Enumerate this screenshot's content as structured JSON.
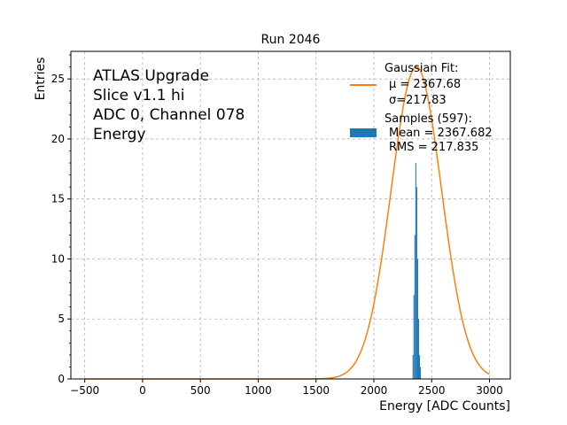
{
  "chart_data": {
    "type": "histogram",
    "title": "Run 2046",
    "xlabel": "Energy [ADC Counts]",
    "ylabel": "Entries",
    "xlim": [
      -620,
      3180
    ],
    "ylim": [
      0,
      27.3
    ],
    "xticks": [
      -500,
      0,
      500,
      1000,
      1500,
      2000,
      2500,
      3000
    ],
    "yticks": [
      0,
      5,
      10,
      15,
      20,
      25
    ],
    "grid": true,
    "annotation_lines": [
      "ATLAS Upgrade",
      "Slice v1.1 hi",
      "ADC 0, Channel 078",
      "Energy"
    ],
    "legend": {
      "placement": "top-right",
      "fit_title": "Gaussian Fit:",
      "fit_mu": "$\\mu$ = 2367.68",
      "fit_sigma": "$\\sigma$=217.83",
      "fit_mu_display": "μ = 2367.68",
      "fit_sigma_display": "σ=217.83",
      "samples_title": "Samples (597):",
      "samples_mean": "Mean = 2367.682",
      "samples_rms": "RMS = 217.835"
    },
    "fit": {
      "mu": 2367.68,
      "sigma": 217.83,
      "amplitude": 26.0,
      "x_range": [
        -500,
        3000
      ],
      "color": "#ff7f0e"
    },
    "histogram": {
      "color": "#1f77b4",
      "bin_edges": [
        2335,
        2343,
        2351,
        2359,
        2367,
        2375,
        2383,
        2391,
        2399,
        2407
      ],
      "counts": [
        2,
        7,
        12,
        18,
        16,
        10,
        5,
        2,
        1
      ]
    }
  }
}
